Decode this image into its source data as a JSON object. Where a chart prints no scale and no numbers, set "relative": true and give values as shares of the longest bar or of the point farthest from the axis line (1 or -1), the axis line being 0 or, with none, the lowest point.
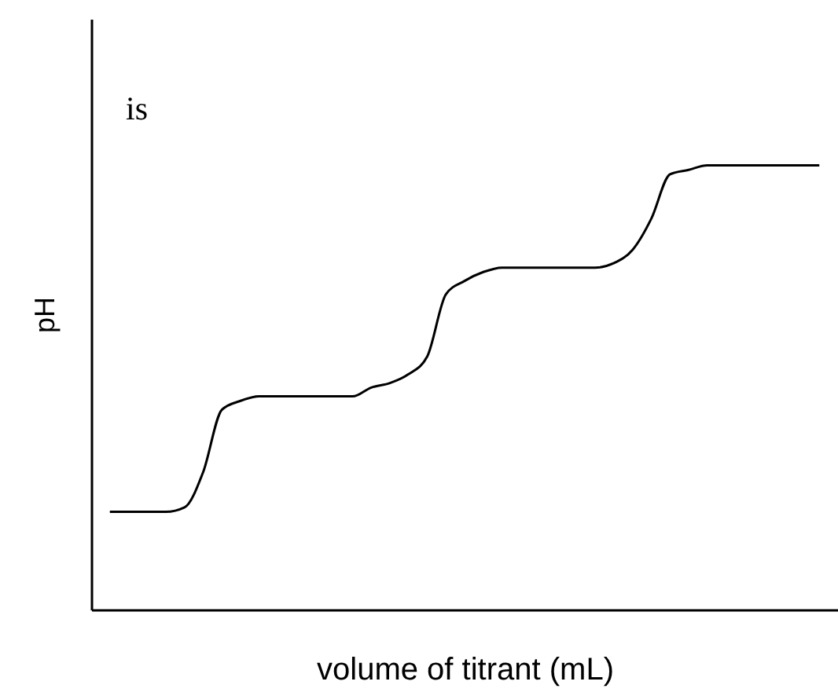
{
  "chart_data": {
    "type": "line",
    "relative": true,
    "xlabel": "volume of titrant (mL)",
    "ylabel": "pH",
    "annotations": [
      "is"
    ],
    "color": "#000000",
    "tick_labels": false,
    "grid": false,
    "categories": [
      null,
      null,
      null,
      null,
      null,
      null,
      null,
      null,
      null,
      null,
      null,
      null,
      null,
      null,
      null,
      null,
      null,
      null,
      null,
      null,
      null,
      null,
      null,
      null,
      null,
      null,
      null,
      null,
      null,
      null,
      null,
      null,
      null,
      null,
      null,
      null,
      null,
      null,
      null
    ],
    "values": [
      0.22,
      0.22,
      0.22,
      0.22,
      0.23,
      0.31,
      0.45,
      0.47,
      0.48,
      0.48,
      0.48,
      0.48,
      0.48,
      0.48,
      0.5,
      0.51,
      0.53,
      0.57,
      0.71,
      0.74,
      0.76,
      0.77,
      0.77,
      0.77,
      0.77,
      0.77,
      0.77,
      0.78,
      0.81,
      0.88,
      0.98,
      0.99,
      1,
      1,
      1,
      1,
      1,
      1,
      1
    ]
  }
}
